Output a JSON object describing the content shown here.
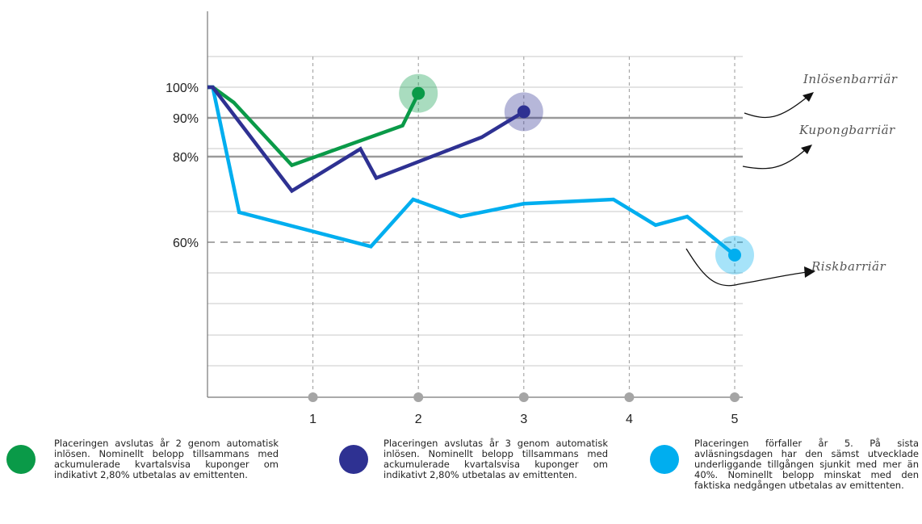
{
  "chart_data": {
    "type": "line",
    "x_ticks": [
      "1",
      "2",
      "3",
      "4",
      "5"
    ],
    "y_ticks": [
      "100%",
      "90%",
      "80%",
      "60%"
    ],
    "xlim": [
      0,
      5
    ],
    "ylim": [
      0,
      120
    ],
    "grid": true,
    "series": [
      {
        "color": "#0a9a48",
        "points": [
          [
            0,
            100
          ],
          [
            0.05,
            100
          ],
          [
            0.25,
            95
          ],
          [
            0.8,
            78
          ],
          [
            1.85,
            88
          ],
          [
            2,
            98
          ]
        ],
        "end_marker": [
          2,
          98
        ]
      },
      {
        "color": "#2e3192",
        "points": [
          [
            0,
            100
          ],
          [
            0.05,
            100
          ],
          [
            0.8,
            72
          ],
          [
            1.45,
            82
          ],
          [
            1.6,
            75
          ],
          [
            2.6,
            85
          ],
          [
            3,
            92
          ]
        ],
        "end_marker": [
          3,
          92
        ]
      },
      {
        "color": "#00aeef",
        "points": [
          [
            0,
            100
          ],
          [
            0.05,
            100
          ],
          [
            0.3,
            67
          ],
          [
            1.55,
            59
          ],
          [
            1.95,
            70
          ],
          [
            2.4,
            66
          ],
          [
            3.0,
            69
          ],
          [
            3.85,
            70
          ],
          [
            4.25,
            64
          ],
          [
            4.55,
            66
          ],
          [
            5,
            57
          ]
        ],
        "end_marker": [
          5,
          57
        ]
      }
    ],
    "barriers": [
      {
        "label": "Inlösenbarriär",
        "level": 100
      },
      {
        "label": "Kupongbarriär",
        "level": 90
      },
      {
        "label": "Kupongbarriär",
        "level": 80
      },
      {
        "label": "Riskbarriär",
        "level": 60
      }
    ]
  },
  "annotations": {
    "inlosen": "Inlösenbarriär",
    "kupong": "Kupongbarriär",
    "risk": "Riskbarriär"
  },
  "legend": [
    {
      "color": "#0a9a48",
      "text": "Placeringen avslutas år 2 genom automatisk inlösen. Nominellt belopp tillsammans med ackumulerade kvartalsvisa kuponger om indikativt 2,80% utbetalas av emittenten."
    },
    {
      "color": "#2e3192",
      "text": "Placeringen avslutas år 3 genom automatisk inlösen. Nominellt belopp tillsammans med ackumulerade kvartalsvisa kuponger om indikativt 2,80% utbetalas av emittenten."
    },
    {
      "color": "#00aeef",
      "text": "Placeringen förfaller år 5. På sista avläsningsdagen har den sämst utvecklade underliggande tillgången sjunkit med mer än 40%. Nominellt belopp minskat med den faktiska nedgången utbetalas av emittenten."
    }
  ]
}
